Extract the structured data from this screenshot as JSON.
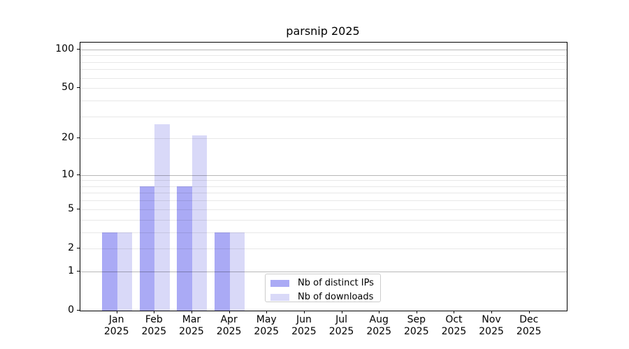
{
  "chart_data": {
    "type": "bar",
    "title": "parsnip 2025",
    "x": {
      "months": [
        "Jan",
        "Feb",
        "Mar",
        "Apr",
        "May",
        "Jun",
        "Jul",
        "Aug",
        "Sep",
        "Oct",
        "Nov",
        "Dec"
      ],
      "year": "2025"
    },
    "series": [
      {
        "name": "Nb of distinct IPs",
        "color": "#aaaaf5",
        "values": [
          3,
          8,
          8,
          3,
          0,
          0,
          0,
          0,
          0,
          0,
          0,
          0
        ]
      },
      {
        "name": "Nb of downloads",
        "color": "#d9d9f8",
        "values": [
          3,
          26,
          21,
          3,
          0,
          0,
          0,
          0,
          0,
          0,
          0,
          0
        ]
      }
    ],
    "yscale": "log10(1+v)",
    "ylim": [
      0,
      113
    ],
    "yticks": [
      0,
      1,
      2,
      5,
      10,
      20,
      50,
      100
    ],
    "gridlines": {
      "major": [
        1,
        10,
        100
      ],
      "minor": [
        2,
        3,
        4,
        5,
        6,
        7,
        8,
        9,
        20,
        30,
        40,
        50,
        60,
        70,
        80,
        90
      ]
    },
    "legend": {
      "position": "lower-center"
    },
    "colors": {
      "background": "#ffffff",
      "axis": "#000000",
      "text": "#000000",
      "major_grid": "#b8b8b8",
      "minor_grid": "#e8e8e8",
      "legend_border": "#cccccc"
    }
  }
}
